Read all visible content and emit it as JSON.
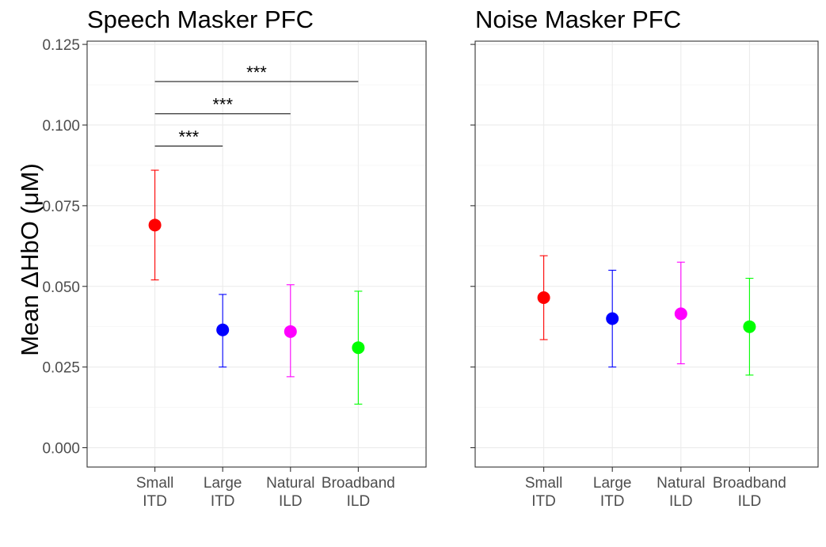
{
  "chart_data": [
    {
      "type": "scatter",
      "title": "Speech Masker PFC",
      "ylabel": "Mean ΔHbO (μM)",
      "ylim": [
        -0.006,
        0.126
      ],
      "yticks": [
        "0.000",
        "0.025",
        "0.050",
        "0.075",
        "0.100",
        "0.125"
      ],
      "grid": true,
      "categories": [
        "Small\nITD",
        "Large\nITD",
        "Natural\nILD",
        "Broadband\nILD"
      ],
      "points": [
        {
          "category": "Small\nITD",
          "y": 0.069,
          "ymin": 0.052,
          "ymax": 0.086,
          "color": "#ff0000"
        },
        {
          "category": "Large\nITD",
          "y": 0.0365,
          "ymin": 0.025,
          "ymax": 0.0475,
          "color": "#0000ff"
        },
        {
          "category": "Natural\nILD",
          "y": 0.036,
          "ymin": 0.022,
          "ymax": 0.0505,
          "color": "#ff00ff"
        },
        {
          "category": "Broadband\nILD",
          "y": 0.031,
          "ymin": 0.0135,
          "ymax": 0.0485,
          "color": "#00ff00"
        }
      ],
      "significance": [
        {
          "from": "Small\nITD",
          "to": "Large\nITD",
          "y": 0.0935,
          "label": "***"
        },
        {
          "from": "Small\nITD",
          "to": "Natural\nILD",
          "y": 0.1035,
          "label": "***"
        },
        {
          "from": "Small\nITD",
          "to": "Broadband\nILD",
          "y": 0.1135,
          "label": "***"
        }
      ]
    },
    {
      "type": "scatter",
      "title": "Noise Masker PFC",
      "ylim": [
        -0.006,
        0.126
      ],
      "grid": true,
      "categories": [
        "Small\nITD",
        "Large\nITD",
        "Natural\nILD",
        "Broadband\nILD"
      ],
      "points": [
        {
          "category": "Small\nITD",
          "y": 0.0465,
          "ymin": 0.0335,
          "ymax": 0.0595,
          "color": "#ff0000"
        },
        {
          "category": "Large\nITD",
          "y": 0.04,
          "ymin": 0.025,
          "ymax": 0.055,
          "color": "#0000ff"
        },
        {
          "category": "Natural\nILD",
          "y": 0.0415,
          "ymin": 0.026,
          "ymax": 0.0575,
          "color": "#ff00ff"
        },
        {
          "category": "Broadband\nILD",
          "y": 0.0375,
          "ymin": 0.0225,
          "ymax": 0.0525,
          "color": "#00ff00"
        }
      ],
      "significance": []
    }
  ]
}
